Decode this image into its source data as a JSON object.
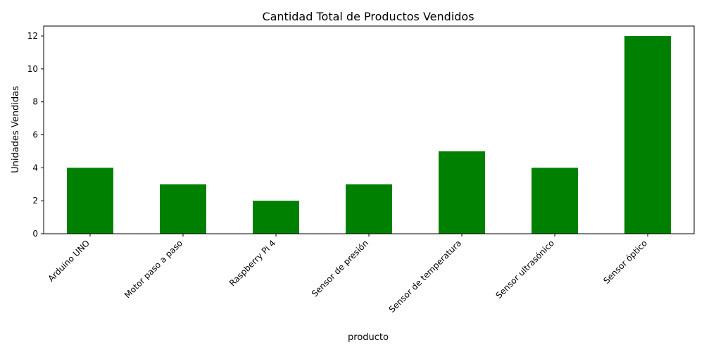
{
  "chart_data": {
    "type": "bar",
    "title": "Cantidad Total de Productos Vendidos",
    "xlabel": "producto",
    "ylabel": "Unidades Vendidas",
    "categories": [
      "Arduino UNO",
      "Motor paso a paso",
      "Raspberry Pi 4",
      "Sensor de presión",
      "Sensor de temperatura",
      "Sensor ultrasónico",
      "Sensor óptico"
    ],
    "values": [
      4,
      3,
      2,
      3,
      5,
      4,
      12
    ],
    "ylim": [
      0,
      12.6
    ],
    "yticks": [
      0,
      2,
      4,
      6,
      8,
      10,
      12
    ],
    "bar_color": "#008000",
    "grid": false,
    "legend": false
  }
}
